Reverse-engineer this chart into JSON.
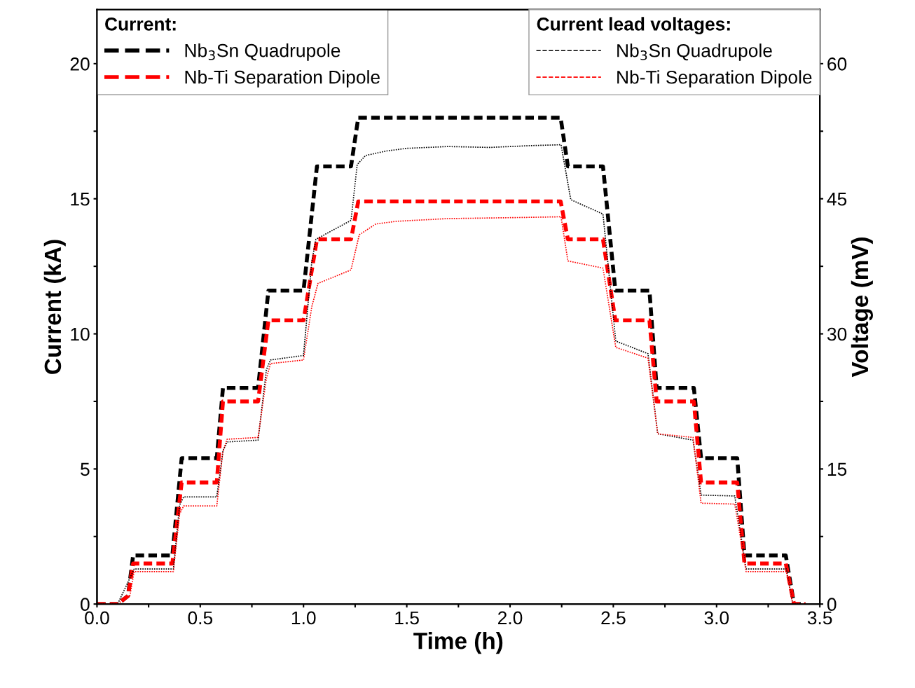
{
  "chart_data": {
    "type": "line",
    "xlabel": "Time (h)",
    "ylabel": "Current (kA)",
    "y2label": "Voltage (mV)",
    "legend_title": [
      "Current:",
      "Current lead voltages:"
    ],
    "legend": "top",
    "grid": false,
    "marker": "none",
    "xlim": [
      0,
      3.5
    ],
    "xticks": [
      {
        "value": 0,
        "label": "0.0"
      },
      {
        "value": 0.25,
        "label": null
      },
      0.5,
      {
        "value": 0.75,
        "label": null
      },
      {
        "value": 1,
        "label": "1.0"
      },
      {
        "value": 1.25,
        "label": null
      },
      1.5,
      {
        "value": 1.75,
        "label": null
      },
      {
        "value": 2,
        "label": "2.0"
      },
      {
        "value": 2.25,
        "label": null
      },
      2.5,
      {
        "value": 2.75,
        "label": null
      },
      {
        "value": 3,
        "label": "3.0"
      },
      {
        "value": 3.25,
        "label": null
      },
      3.5
    ],
    "ylim": [
      0,
      22
    ],
    "yticks": [
      0,
      {
        "value": 2.5,
        "label": null
      },
      5,
      {
        "value": 7.5,
        "label": null
      },
      10,
      {
        "value": 12.5,
        "label": null
      },
      15,
      {
        "value": 17.5,
        "label": null
      },
      20
    ],
    "y2lim": [
      0,
      66
    ],
    "y2ticks": [
      0,
      {
        "value": 7.5,
        "label": null
      },
      15,
      {
        "value": 22.5,
        "label": null
      },
      30,
      {
        "value": 37.5,
        "label": null
      },
      45,
      {
        "value": 52.5,
        "label": null
      },
      60
    ],
    "series": [
      {
        "name": "Nb$_{3}$Sn Quadrupole",
        "color": "#000000",
        "line_style": "dashed",
        "x": [
          0,
          0.1,
          0.15,
          0.175,
          0.365,
          0.41,
          0.58,
          0.61,
          0.78,
          0.83,
          1.0,
          1.065,
          1.23,
          1.265,
          2.245,
          2.28,
          2.45,
          2.51,
          2.675,
          2.71,
          2.89,
          2.925,
          3.1,
          3.135,
          3.335,
          3.375,
          3.43
        ],
        "values": [
          0,
          0,
          0.3,
          1.8,
          1.8,
          5.4,
          5.4,
          8.0,
          8.0,
          11.6,
          11.6,
          16.2,
          16.2,
          18.0,
          18.0,
          16.2,
          16.2,
          11.6,
          11.6,
          8.0,
          8.0,
          5.4,
          5.4,
          1.8,
          1.8,
          0,
          0
        ]
      },
      {
        "name": "Nb-Ti Separation Dipole",
        "color": "#ff0000",
        "line_style": "dashed",
        "x": [
          0,
          0.1,
          0.15,
          0.175,
          0.365,
          0.41,
          0.58,
          0.61,
          0.78,
          0.83,
          1.0,
          1.065,
          1.23,
          1.265,
          2.245,
          2.28,
          2.45,
          2.51,
          2.675,
          2.71,
          2.89,
          2.925,
          3.1,
          3.135,
          3.335,
          3.375,
          3.43
        ],
        "values": [
          0,
          0,
          0.3,
          1.5,
          1.5,
          4.5,
          4.5,
          7.5,
          7.5,
          10.5,
          10.5,
          13.5,
          13.5,
          14.9,
          14.9,
          13.5,
          13.5,
          10.5,
          10.5,
          7.5,
          7.5,
          4.5,
          4.5,
          1.5,
          1.5,
          0,
          0
        ]
      },
      {
        "name": "Nb$_{3}$Sn Quadrupole",
        "color": "#000000",
        "line_style": "dotted",
        "axis": "y2",
        "x": [
          0,
          0.1,
          0.18,
          0.37,
          0.4,
          0.42,
          0.58,
          0.61,
          0.63,
          0.78,
          0.82,
          0.84,
          1.0,
          1.04,
          1.06,
          1.23,
          1.26,
          1.3,
          1.4,
          1.5,
          1.7,
          1.9,
          2.1,
          2.247,
          2.294,
          2.45,
          2.512,
          2.668,
          2.715,
          2.886,
          2.925,
          3.088,
          3.143,
          3.338,
          3.369,
          3.43
        ],
        "values": [
          0,
          0,
          3.9,
          3.9,
          11,
          11.9,
          11.9,
          17,
          18.0,
          18.2,
          26,
          27.1,
          27.6,
          38,
          40.5,
          42.6,
          48.8,
          49.8,
          50.3,
          50.6,
          50.8,
          50.7,
          50.9,
          51.0,
          44.9,
          43.3,
          29.2,
          27.8,
          18.9,
          18.2,
          12.1,
          12.0,
          3.9,
          3.9,
          0,
          0
        ]
      },
      {
        "name": "Nb-Ti Separation Dipole",
        "color": "#ff0000",
        "line_style": "dotted",
        "axis": "y2",
        "x": [
          0,
          0.1,
          0.16,
          0.18,
          0.37,
          0.4,
          0.42,
          0.58,
          0.61,
          0.63,
          0.78,
          0.82,
          0.84,
          1.0,
          1.04,
          1.07,
          1.23,
          1.27,
          1.35,
          1.45,
          1.7,
          2.0,
          2.247,
          2.28,
          2.45,
          2.512,
          2.668,
          2.715,
          2.886,
          2.925,
          3.088,
          3.143,
          3.338,
          3.369,
          3.43
        ],
        "values": [
          0,
          0,
          1,
          3.6,
          3.6,
          10,
          10.9,
          10.9,
          17,
          18.3,
          18.5,
          25,
          26.7,
          27.1,
          33,
          35.6,
          37.1,
          41,
          42.2,
          42.5,
          42.8,
          42.9,
          43.0,
          38.1,
          37.3,
          28.5,
          27.3,
          18.9,
          18.5,
          11.2,
          11.1,
          3.6,
          3.6,
          0,
          0
        ]
      }
    ]
  }
}
